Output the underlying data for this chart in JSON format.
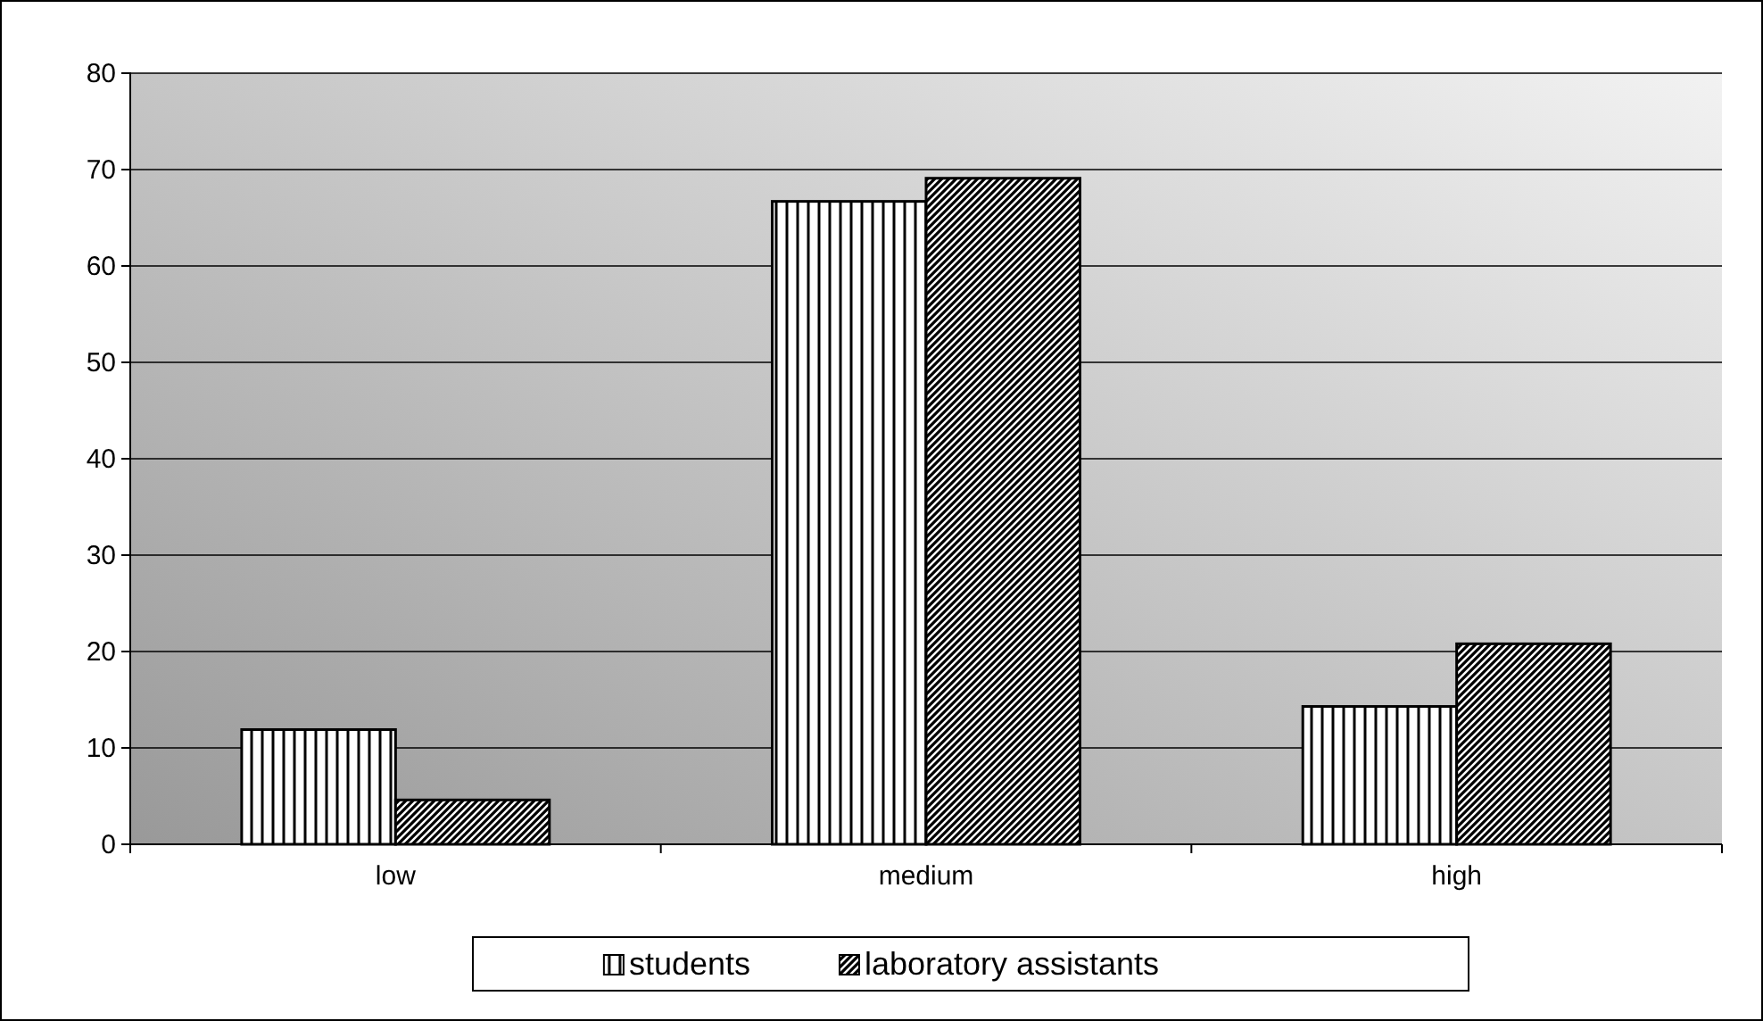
{
  "chart_data": {
    "type": "bar",
    "categories": [
      "low",
      "medium",
      "high"
    ],
    "series": [
      {
        "name": "students",
        "color": "#000000",
        "values": [
          11.9,
          66.7,
          14.3
        ]
      },
      {
        "name": "laboratory assistants",
        "color": "#000000",
        "values": [
          4.6,
          69.1,
          20.8
        ]
      }
    ],
    "ylim": [
      0,
      80
    ],
    "yticks": [
      0,
      10,
      20,
      30,
      40,
      50,
      60,
      70,
      80
    ],
    "grid": "y",
    "legend": "bottom"
  }
}
